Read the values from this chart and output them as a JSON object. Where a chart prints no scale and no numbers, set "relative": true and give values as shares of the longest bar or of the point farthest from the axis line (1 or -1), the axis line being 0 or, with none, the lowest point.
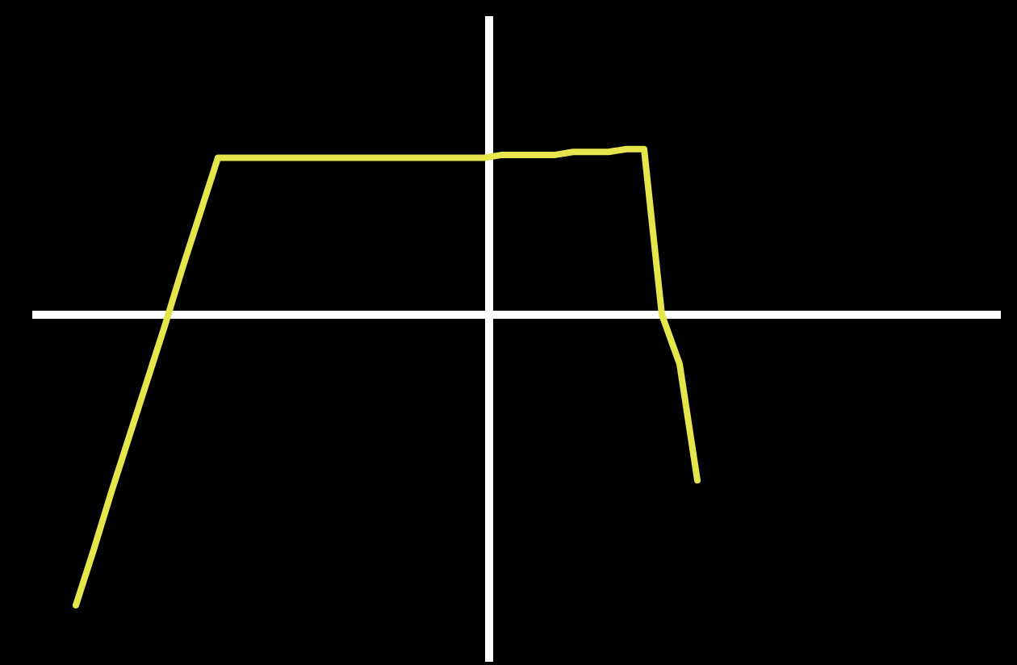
{
  "chart_data": {
    "type": "line",
    "relative": true,
    "tick_labels": false,
    "legend": false,
    "marker": "none",
    "line_style": "solid",
    "categories": [
      null,
      null,
      null,
      null,
      null,
      null,
      null,
      null,
      null,
      null,
      null,
      null,
      null,
      null,
      null,
      null,
      null,
      null,
      null,
      null,
      null,
      null,
      null,
      null,
      null,
      null,
      null,
      null,
      null,
      null,
      null,
      null,
      null,
      null,
      null,
      null
    ],
    "series": [
      {
        "color": "#e6e64c",
        "values": [
          -1,
          -0.81,
          -0.61,
          -0.42,
          -0.23,
          -0.04,
          0.16,
          0.35,
          0.54,
          0.54,
          0.54,
          0.54,
          0.54,
          0.54,
          0.54,
          0.54,
          0.54,
          0.54,
          0.54,
          0.54,
          0.54,
          0.54,
          0.54,
          0.54,
          0.55,
          0.55,
          0.55,
          0.55,
          0.56,
          0.56,
          0.56,
          0.57,
          0.57,
          0,
          -0.17,
          -0.57
        ]
      }
    ]
  }
}
